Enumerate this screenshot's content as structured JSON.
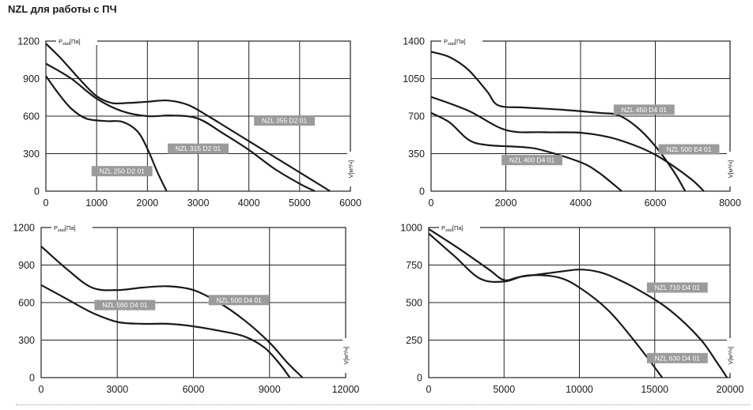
{
  "page": {
    "title": "NZL для работы с ПЧ"
  },
  "chart_data": [
    {
      "type": "line",
      "ylabel_main": "P",
      "ylabel_sub": "stat",
      "ylabel_unit": "[Па]",
      "xlabel": "V[м³/ч]",
      "xticks": [
        0,
        1000,
        2000,
        3000,
        4000,
        5000,
        6000
      ],
      "yticks": [
        0,
        300,
        600,
        900,
        1200
      ],
      "xlim": [
        0,
        6000
      ],
      "ylim": [
        0,
        1200
      ],
      "grid": true,
      "series": [
        {
          "name": "NZL 250 D2 01",
          "points": [
            [
              0,
              920
            ],
            [
              250,
              780
            ],
            [
              500,
              660
            ],
            [
              800,
              580
            ],
            [
              1200,
              560
            ],
            [
              1500,
              555
            ],
            [
              1800,
              480
            ],
            [
              2000,
              340
            ],
            [
              2200,
              150
            ],
            [
              2380,
              0
            ]
          ],
          "label_at": [
            1500,
            160
          ]
        },
        {
          "name": "NZL 315 D2 01",
          "points": [
            [
              0,
              1020
            ],
            [
              500,
              900
            ],
            [
              1000,
              740
            ],
            [
              1500,
              640
            ],
            [
              2000,
              600
            ],
            [
              2500,
              605
            ],
            [
              3000,
              580
            ],
            [
              3500,
              460
            ],
            [
              4000,
              330
            ],
            [
              4500,
              180
            ],
            [
              5000,
              60
            ],
            [
              5300,
              0
            ]
          ],
          "label_at": [
            3000,
            340
          ]
        },
        {
          "name": "NZL 355 D2 01",
          "points": [
            [
              0,
              1180
            ],
            [
              300,
              1060
            ],
            [
              700,
              880
            ],
            [
              1000,
              760
            ],
            [
              1300,
              705
            ],
            [
              1600,
              705
            ],
            [
              2000,
              715
            ],
            [
              2400,
              725
            ],
            [
              2800,
              690
            ],
            [
              3200,
              600
            ],
            [
              3600,
              500
            ],
            [
              4000,
              400
            ],
            [
              4400,
              300
            ],
            [
              4800,
              200
            ],
            [
              5200,
              100
            ],
            [
              5600,
              0
            ]
          ],
          "label_at": [
            4700,
            565
          ]
        }
      ]
    },
    {
      "type": "line",
      "ylabel_main": "P",
      "ylabel_sub": "stat",
      "ylabel_unit": "[Па]",
      "xlabel": "V[м³/ч]",
      "xticks": [
        0,
        2000,
        4000,
        6000,
        8000
      ],
      "yticks": [
        0,
        350,
        700,
        1050,
        1400
      ],
      "xlim": [
        0,
        8000
      ],
      "ylim": [
        0,
        1400
      ],
      "grid": true,
      "series": [
        {
          "name": "NZL 400 D4 01",
          "points": [
            [
              0,
              730
            ],
            [
              500,
              640
            ],
            [
              1000,
              480
            ],
            [
              1500,
              430
            ],
            [
              2500,
              410
            ],
            [
              3000,
              380
            ],
            [
              4000,
              270
            ],
            [
              4500,
              170
            ],
            [
              5100,
              0
            ]
          ],
          "label_at": [
            2700,
            290
          ]
        },
        {
          "name": "NZL 450 D4 01",
          "points": [
            [
              0,
              1300
            ],
            [
              500,
              1250
            ],
            [
              1000,
              1130
            ],
            [
              1500,
              930
            ],
            [
              1800,
              800
            ],
            [
              2500,
              780
            ],
            [
              3500,
              760
            ],
            [
              4500,
              730
            ],
            [
              5000,
              710
            ],
            [
              5500,
              600
            ],
            [
              6000,
              420
            ],
            [
              6500,
              180
            ],
            [
              6800,
              0
            ]
          ],
          "label_at": [
            5700,
            760
          ]
        },
        {
          "name": "NZL 500 E4 01",
          "points": [
            [
              0,
              880
            ],
            [
              1000,
              750
            ],
            [
              2000,
              570
            ],
            [
              3000,
              550
            ],
            [
              4000,
              545
            ],
            [
              4800,
              500
            ],
            [
              5500,
              420
            ],
            [
              6000,
              340
            ],
            [
              6500,
              230
            ],
            [
              7000,
              100
            ],
            [
              7300,
              0
            ]
          ],
          "label_at": [
            6900,
            390
          ]
        }
      ]
    },
    {
      "type": "line",
      "ylabel_main": "P",
      "ylabel_sub": "stat",
      "ylabel_unit": "[Па]",
      "xlabel": "V[м³/ч]",
      "xticks": [
        0,
        3000,
        6000,
        9000,
        12000
      ],
      "yticks": [
        0,
        300,
        600,
        900,
        1200
      ],
      "xlim": [
        0,
        12000
      ],
      "ylim": [
        0,
        1200
      ],
      "grid": true,
      "series": [
        {
          "name": "NZL 560 D4 01",
          "points": [
            [
              0,
              740
            ],
            [
              1000,
              630
            ],
            [
              2000,
              520
            ],
            [
              3000,
              445
            ],
            [
              4000,
              430
            ],
            [
              5000,
              430
            ],
            [
              6000,
              410
            ],
            [
              7000,
              375
            ],
            [
              8000,
              330
            ],
            [
              8800,
              240
            ],
            [
              9400,
              110
            ],
            [
              9800,
              0
            ]
          ],
          "label_at": [
            3300,
            580
          ]
        },
        {
          "name": "NZL 500 D4 01",
          "points": [
            [
              0,
              1050
            ],
            [
              1000,
              870
            ],
            [
              2000,
              720
            ],
            [
              3000,
              700
            ],
            [
              4000,
              720
            ],
            [
              5000,
              730
            ],
            [
              6000,
              700
            ],
            [
              7000,
              600
            ],
            [
              8000,
              460
            ],
            [
              9000,
              280
            ],
            [
              9700,
              120
            ],
            [
              10300,
              0
            ]
          ],
          "label_at": [
            7800,
            620
          ]
        }
      ]
    },
    {
      "type": "line",
      "ylabel_main": "P",
      "ylabel_sub": "stat",
      "ylabel_unit": "[Па]",
      "xlabel": "V[м³/ч]",
      "xticks": [
        0,
        5000,
        10000,
        15000,
        20000
      ],
      "yticks": [
        0,
        250,
        500,
        750,
        1000
      ],
      "xlim": [
        0,
        20000
      ],
      "ylim": [
        0,
        1000
      ],
      "grid": true,
      "series": [
        {
          "name": "NZL 630 D4 01",
          "points": [
            [
              0,
              960
            ],
            [
              1700,
              810
            ],
            [
              3400,
              660
            ],
            [
              5000,
              640
            ],
            [
              6500,
              680
            ],
            [
              8500,
              670
            ],
            [
              10000,
              600
            ],
            [
              12000,
              440
            ],
            [
              14000,
              200
            ],
            [
              15500,
              0
            ]
          ],
          "label_at": [
            16500,
            130
          ]
        },
        {
          "name": "NZL 710 D4 01",
          "points": [
            [
              0,
              990
            ],
            [
              2000,
              860
            ],
            [
              4000,
              720
            ],
            [
              5000,
              650
            ],
            [
              6000,
              670
            ],
            [
              7500,
              690
            ],
            [
              9000,
              710
            ],
            [
              10000,
              720
            ],
            [
              11000,
              710
            ],
            [
              12000,
              680
            ],
            [
              14000,
              580
            ],
            [
              16000,
              450
            ],
            [
              18000,
              260
            ],
            [
              19200,
              90
            ],
            [
              19800,
              0
            ]
          ],
          "label_at": [
            16500,
            600
          ]
        }
      ]
    }
  ]
}
